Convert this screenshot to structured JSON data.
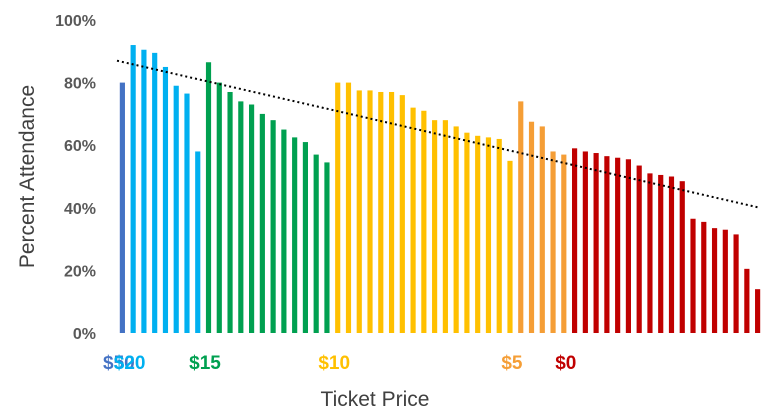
{
  "chart_data": {
    "type": "bar",
    "title": "",
    "xlabel": "Ticket Price",
    "ylabel": "Percent Attendance",
    "ylim": [
      0,
      100
    ],
    "yticks": [
      "0%",
      "20%",
      "40%",
      "60%",
      "80%",
      "100%"
    ],
    "grid": false,
    "legend": "none",
    "trendline": {
      "style": "dotted",
      "color": "#000000",
      "start": 87,
      "end": 40
    },
    "groups": [
      {
        "label": "$50",
        "color": "#4472C4",
        "values": [
          80
        ]
      },
      {
        "label": "$20",
        "color": "#00B0F0",
        "values": [
          92,
          90.5,
          89.5,
          85,
          79,
          76.5,
          58
        ]
      },
      {
        "label": "$15",
        "color": "#00A050",
        "values": [
          86.5,
          80,
          77,
          74,
          73,
          70,
          68,
          65,
          62.5,
          61,
          57,
          54.5
        ]
      },
      {
        "label": "$10",
        "color": "#FFC000",
        "values": [
          80,
          80,
          77.5,
          77.5,
          77,
          77,
          76,
          72,
          71,
          68,
          68,
          66,
          64,
          63,
          62.5,
          62,
          55
        ]
      },
      {
        "label": "$5",
        "color": "#F59E36",
        "values": [
          74,
          67.5,
          66,
          58,
          57
        ]
      },
      {
        "label": "$0",
        "color": "#C00000",
        "values": [
          59,
          58,
          57.5,
          56.5,
          56,
          55.5,
          53.5,
          51,
          50.5,
          50,
          48.5,
          36.5,
          35.5,
          33.5,
          33,
          31.5,
          20.5,
          14
        ]
      }
    ]
  }
}
